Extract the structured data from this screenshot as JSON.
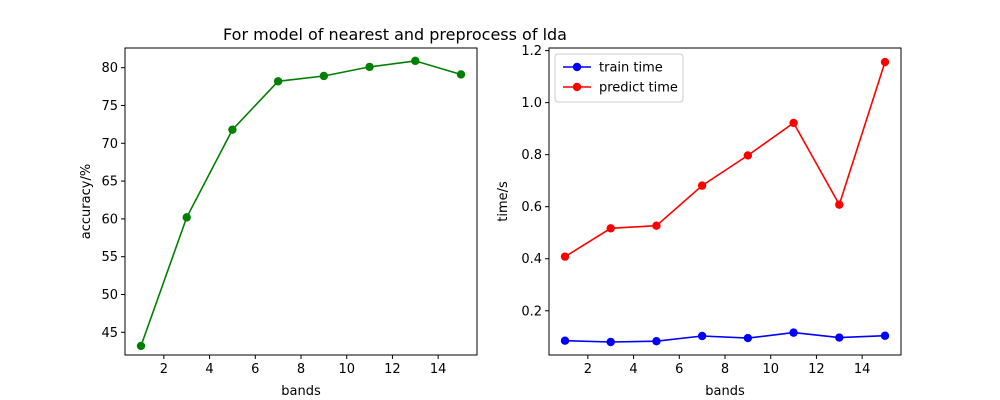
{
  "figure": {
    "title": "For model of nearest and preprocess of lda"
  },
  "chart_data": [
    {
      "type": "line",
      "xlabel": "bands",
      "ylabel": "accuracy/%",
      "xlim": [
        0.3,
        15.7
      ],
      "ylim": [
        42.0,
        82.6
      ],
      "xticks": [
        2,
        4,
        6,
        8,
        10,
        12,
        14
      ],
      "yticks": [
        45,
        50,
        55,
        60,
        65,
        70,
        75,
        80
      ],
      "x": [
        1,
        3,
        5,
        7,
        9,
        11,
        13,
        15
      ],
      "series": [
        {
          "color": "#008000",
          "values": [
            43.2,
            60.2,
            71.8,
            78.2,
            78.9,
            80.1,
            80.9,
            79.1
          ]
        }
      ]
    },
    {
      "type": "line",
      "xlabel": "bands",
      "ylabel": "time/s",
      "xlim": [
        0.3,
        15.7
      ],
      "ylim": [
        0.03,
        1.21
      ],
      "xticks": [
        2,
        4,
        6,
        8,
        10,
        12,
        14
      ],
      "yticks": [
        0.2,
        0.4,
        0.6,
        0.8,
        1.0,
        1.2
      ],
      "x": [
        1,
        3,
        5,
        7,
        9,
        11,
        13,
        15
      ],
      "legend": "top-left",
      "series": [
        {
          "name": "train time",
          "color": "#0000ff",
          "values": [
            0.085,
            0.08,
            0.083,
            0.103,
            0.095,
            0.116,
            0.097,
            0.104
          ]
        },
        {
          "name": "predict time",
          "color": "#ff0000",
          "values": [
            0.408,
            0.517,
            0.527,
            0.681,
            0.797,
            0.922,
            0.608,
            1.156
          ]
        }
      ]
    }
  ]
}
